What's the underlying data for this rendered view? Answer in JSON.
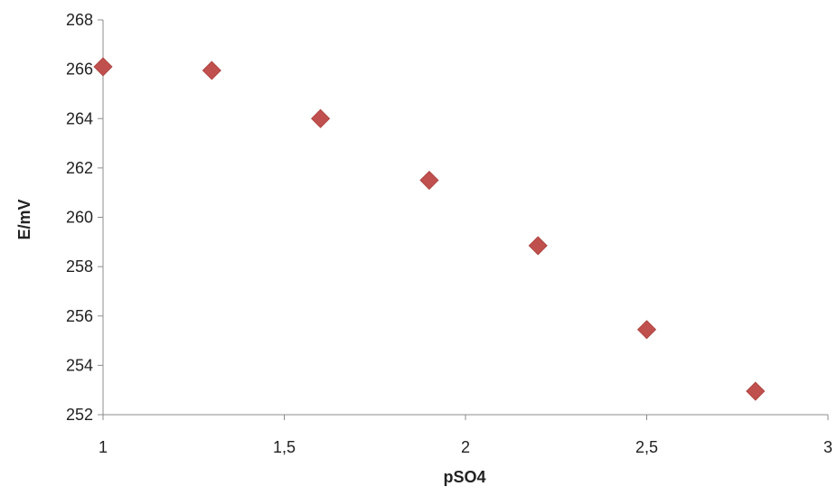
{
  "chart_data": {
    "type": "scatter",
    "title": "",
    "xlabel": "pSO4",
    "ylabel": "E/mV",
    "xlim": [
      1,
      3
    ],
    "ylim": [
      252,
      268
    ],
    "x_ticks": [
      1,
      1.5,
      2,
      2.5,
      3
    ],
    "x_tick_labels": [
      "1",
      "1,5",
      "2",
      "2,5",
      "3"
    ],
    "y_ticks": [
      252,
      254,
      256,
      258,
      260,
      262,
      264,
      266,
      268
    ],
    "y_tick_labels": [
      "252",
      "254",
      "256",
      "258",
      "260",
      "262",
      "264",
      "266",
      "268"
    ],
    "grid": false,
    "legend": "none",
    "marker": "diamond",
    "series": [
      {
        "color": "#c0504d",
        "points": [
          {
            "x": 1.0,
            "y": 266.1
          },
          {
            "x": 1.3,
            "y": 265.95
          },
          {
            "x": 1.6,
            "y": 264.0
          },
          {
            "x": 1.9,
            "y": 261.5
          },
          {
            "x": 2.2,
            "y": 258.85
          },
          {
            "x": 2.5,
            "y": 255.45
          },
          {
            "x": 2.8,
            "y": 252.95
          }
        ]
      }
    ]
  }
}
